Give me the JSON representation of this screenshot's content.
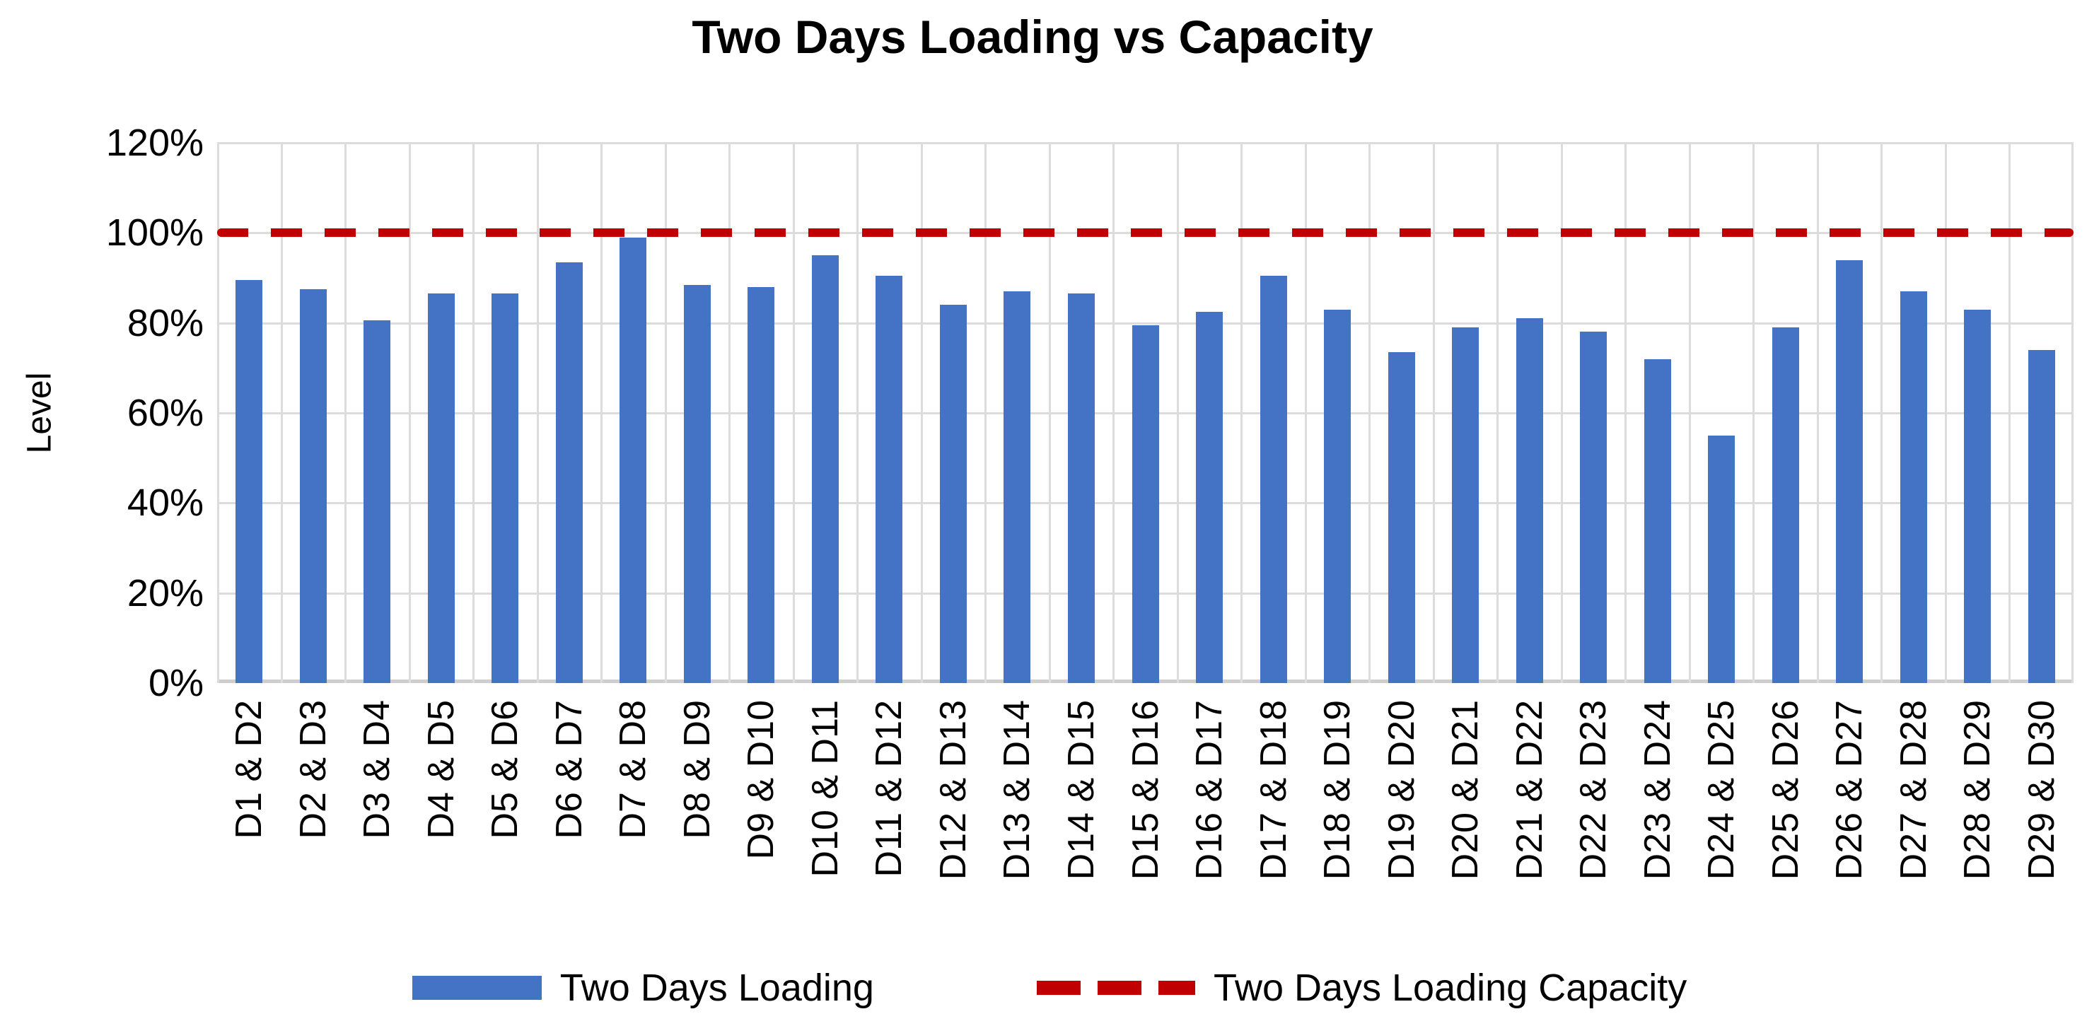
{
  "title": "Two Days Loading vs Capacity",
  "y_axis": {
    "label": "Level",
    "ticks": [
      "120%",
      "100%",
      "80%",
      "60%",
      "40%",
      "20%",
      "0%"
    ]
  },
  "legend": [
    {
      "label": "Two Days Loading",
      "swatch": "bar",
      "color": "#4472C4"
    },
    {
      "label": "Two Days Loading Capacity",
      "swatch": "dash",
      "color": "#C00000"
    }
  ],
  "colors": {
    "bar": "#4472C4",
    "capacity_line": "#C00000",
    "gridline": "#DCDCDC",
    "axis_line": "#CFCDCD",
    "text": "#000000",
    "background": "#FFFFFF"
  },
  "chart_data": {
    "type": "bar",
    "title": "Two Days Loading vs Capacity",
    "xlabel": "",
    "ylabel": "Level",
    "ylim": [
      0,
      120
    ],
    "y_tick_step": 20,
    "y_tick_format": "percent",
    "grid": true,
    "legend_position": "bottom",
    "categories": [
      "D1 & D2",
      "D2 & D3",
      "D3 & D4",
      "D4 & D5",
      "D5 & D6",
      "D6 & D7",
      "D7 & D8",
      "D8 & D9",
      "D9 & D10",
      "D10 & D11",
      "D11 & D12",
      "D12 & D13",
      "D13 & D14",
      "D14 & D15",
      "D15 & D16",
      "D16 & D17",
      "D17 & D18",
      "D18 & D19",
      "D19 & D20",
      "D20 & D21",
      "D21 & D22",
      "D22 & D23",
      "D23 & D24",
      "D24 & D25",
      "D25 & D26",
      "D26 & D27",
      "D27 & D28",
      "D28 & D29",
      "D29 & D30"
    ],
    "series": [
      {
        "name": "Two Days Loading",
        "type": "bar",
        "color": "#4472C4",
        "values": [
          89.5,
          87.5,
          80.5,
          86.5,
          86.5,
          93.5,
          99,
          88.5,
          88,
          95,
          90.5,
          84,
          87,
          86.5,
          79.5,
          82.5,
          90.5,
          83,
          73.5,
          79,
          81,
          78,
          72,
          55,
          79,
          94,
          87,
          83,
          74
        ]
      },
      {
        "name": "Two Days Loading Capacity",
        "type": "dashed-line",
        "color": "#C00000",
        "constant_value": 100
      }
    ]
  }
}
